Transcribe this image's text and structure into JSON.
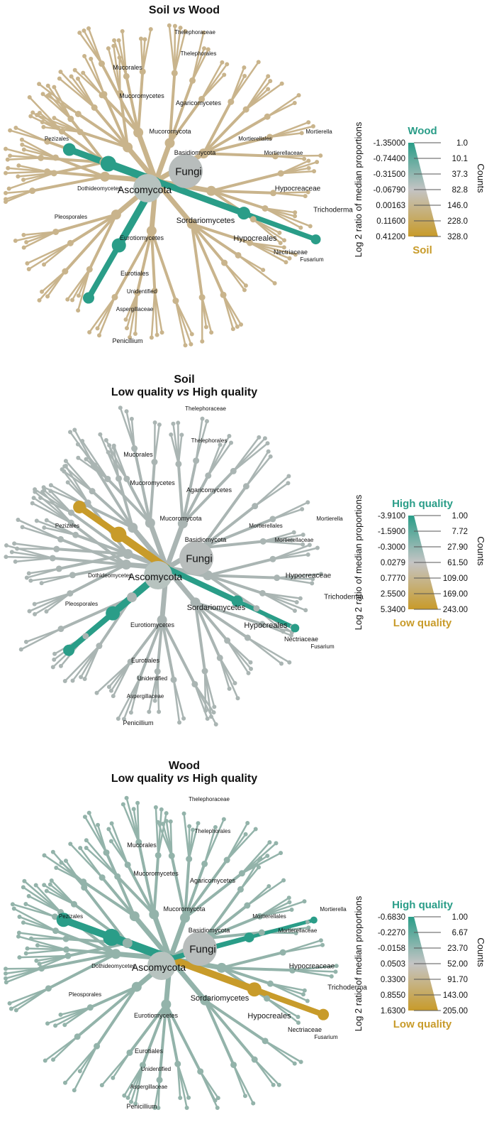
{
  "panels": [
    {
      "title_line1": "Soil vs Wood",
      "title_line2": "",
      "legend": {
        "top_label": "Wood",
        "bottom_label": "Soil",
        "top_color": "#2a9d88",
        "bottom_color": "#c89b2a",
        "ratio_values": [
          "-1.35000",
          "-0.74400",
          "-0.31500",
          "-0.06790",
          "0.00163",
          "0.11600",
          "0.41200"
        ],
        "count_values": [
          "1.0",
          "10.1",
          "37.3",
          "82.8",
          "146.0",
          "228.0",
          "328.0"
        ],
        "y_title": "Log 2 ratio of median proportions",
        "counts_title": "Counts"
      },
      "labels": [
        "Fungi",
        "Ascomycota",
        "Basidiomycota",
        "Mucoromycota",
        "Agaricomycetes",
        "Mucoromycetes",
        "Mucorales",
        "Sordariomycetes",
        "Hypocreales",
        "Hypocreaceae",
        "Trichoderma",
        "Nectriaceae",
        "Eurotiomycetes",
        "Eurotiales",
        "Aspergillaceae",
        "Penicillium",
        "Unidentified",
        "Dothideomycetes",
        "Pezizales",
        "Pleosporales",
        "Thelephorales",
        "Thelephoraceae",
        "Mortierellales",
        "Mortierellaceae",
        "Mortierella",
        "Fusarium"
      ]
    },
    {
      "title_line1": "Soil",
      "title_line2": "Low quality vs High quality",
      "legend": {
        "top_label": "High quality",
        "bottom_label": "Low quality",
        "top_color": "#2a9d88",
        "bottom_color": "#c89b2a",
        "ratio_values": [
          "-3.9100",
          "-1.5900",
          "-0.3000",
          "0.0279",
          "0.7770",
          "2.5500",
          "5.3400"
        ],
        "count_values": [
          "1.00",
          "7.72",
          "27.90",
          "61.50",
          "109.00",
          "169.00",
          "243.00"
        ],
        "y_title": "Log 2 ratio of median proportions",
        "counts_title": "Counts"
      },
      "labels": [
        "Fungi",
        "Ascomycota",
        "Basidiomycota",
        "Mucoromycota",
        "Agaricomycetes",
        "Mucoromycetes",
        "Mucorales",
        "Sordariomycetes",
        "Hypocreales",
        "Hypocreaceae",
        "Trichoderma",
        "Nectriaceae",
        "Eurotiomycetes",
        "Eurotiales",
        "Aspergillaceae",
        "Penicillium",
        "Unidentified",
        "Dothideomycetes",
        "Pezizales",
        "Pleosporales",
        "Thelephorales",
        "Thelephoraceae",
        "Mortierellales",
        "Mortierellaceae",
        "Mortierella",
        "Fusarium"
      ]
    },
    {
      "title_line1": "Wood",
      "title_line2": "Low quality vs High quality",
      "legend": {
        "top_label": "High quality",
        "bottom_label": "Low quality",
        "top_color": "#2a9d88",
        "bottom_color": "#c89b2a",
        "ratio_values": [
          "-0.6830",
          "-0.2270",
          "-0.0158",
          "0.0503",
          "0.3300",
          "0.8550",
          "1.6300"
        ],
        "count_values": [
          "1.00",
          "6.67",
          "23.70",
          "52.00",
          "91.70",
          "143.00",
          "205.00"
        ],
        "y_title": "Log 2 ratio of median proportions",
        "counts_title": "Counts"
      },
      "labels": [
        "Fungi",
        "Ascomycota",
        "Basidiomycota",
        "Mucoromycota",
        "Agaricomycetes",
        "Mucoromycetes",
        "Mucorales",
        "Sordariomycetes",
        "Hypocreales",
        "Hypocreaceae",
        "Trichoderma",
        "Nectriaceae",
        "Eurotiomycetes",
        "Eurotiales",
        "Aspergillaceae",
        "Penicillium",
        "Unidentified",
        "Dothideomycetes",
        "Pezizales",
        "Pleosporales",
        "Thelephorales",
        "Thelephoraceae",
        "Mortierellales",
        "Mortierellaceae",
        "Mortierella",
        "Fusarium"
      ]
    }
  ],
  "colors": {
    "teal": "#2a9d88",
    "gold": "#c89b2a",
    "grey": "#aab5b3",
    "tan": "#c9b48c",
    "sage": "#93b3aa"
  }
}
